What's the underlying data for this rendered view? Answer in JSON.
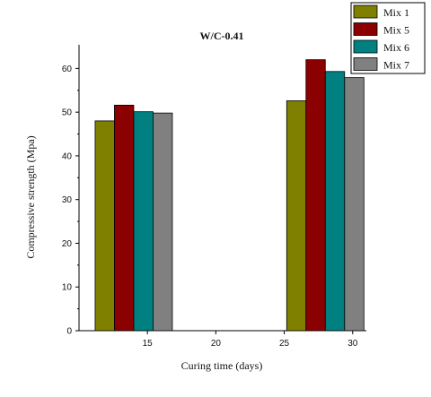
{
  "chart_data": {
    "type": "bar",
    "title": "W/C-0.41",
    "xlabel": "Curing time (days)",
    "ylabel": "Compressive strength (Mpa)",
    "xlim": [
      10,
      31
    ],
    "ylim": [
      0,
      65
    ],
    "xticks": [
      15,
      20,
      25,
      30
    ],
    "yticks": [
      0,
      10,
      20,
      30,
      40,
      50,
      60
    ],
    "groups": [
      14,
      28
    ],
    "series": [
      {
        "name": "Mix 1",
        "color": "#808000",
        "values": [
          48.0,
          52.6
        ]
      },
      {
        "name": "Mix 5",
        "color": "#8b0000",
        "values": [
          51.6,
          62.0
        ]
      },
      {
        "name": "Mix 6",
        "color": "#008080",
        "values": [
          50.1,
          59.3
        ]
      },
      {
        "name": "Mix 7",
        "color": "#808080",
        "values": [
          49.8,
          57.9
        ]
      }
    ],
    "legend_position": "top-right",
    "grid": false
  }
}
